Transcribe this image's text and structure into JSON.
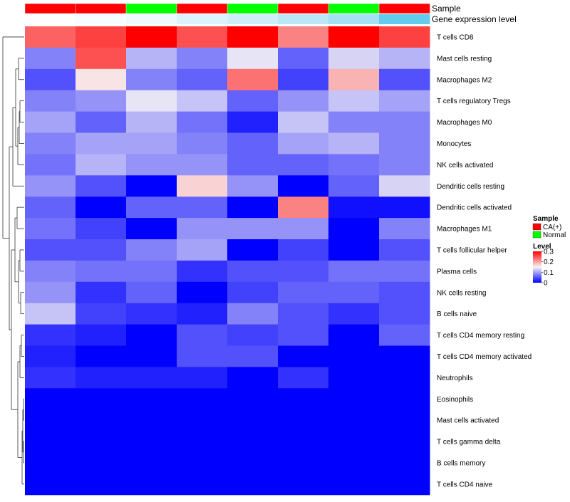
{
  "chart_data": {
    "type": "heatmap",
    "title": "",
    "annotation_labels": [
      "Sample",
      "Gene expression level"
    ],
    "columns": [
      {
        "sample": "CA(+)",
        "expression": 0.02
      },
      {
        "sample": "CA(+)",
        "expression": 0.05
      },
      {
        "sample": "Normal",
        "expression": 0.1
      },
      {
        "sample": "CA(+)",
        "expression": 0.22
      },
      {
        "sample": "Normal",
        "expression": 0.3
      },
      {
        "sample": "CA(+)",
        "expression": 0.42
      },
      {
        "sample": "Normal",
        "expression": 0.55
      },
      {
        "sample": "CA(+)",
        "expression": 0.95
      }
    ],
    "rows": [
      "T cells CD8",
      "Mast cells resting",
      "Macrophages M2",
      "T cells regulatory  Tregs",
      "Macrophages M0",
      "Monocytes",
      "NK cells activated",
      "Dendritic cells resting",
      "Dendritic cells activated",
      "Macrophages M1",
      "T cells follicular helper",
      "Plasma cells",
      "NK cells resting",
      "B cells naive",
      "T cells CD4 memory resting",
      "T cells CD4 memory activated",
      "Neutrophils",
      "Eosinophils",
      "Mast cells activated",
      "T cells gamma delta",
      "B cells memory",
      "T cells CD4 naive"
    ],
    "values": [
      [
        0.24,
        0.26,
        0.3,
        0.25,
        0.3,
        0.22,
        0.3,
        0.26
      ],
      [
        0.08,
        0.25,
        0.11,
        0.08,
        0.14,
        0.06,
        0.13,
        0.11
      ],
      [
        0.05,
        0.16,
        0.08,
        0.06,
        0.23,
        0.04,
        0.19,
        0.05
      ],
      [
        0.08,
        0.09,
        0.14,
        0.12,
        0.06,
        0.09,
        0.12,
        0.1
      ],
      [
        0.1,
        0.06,
        0.11,
        0.07,
        0.02,
        0.12,
        0.08,
        0.08
      ],
      [
        0.08,
        0.1,
        0.1,
        0.08,
        0.06,
        0.1,
        0.11,
        0.08
      ],
      [
        0.07,
        0.11,
        0.09,
        0.09,
        0.06,
        0.06,
        0.07,
        0.08
      ],
      [
        0.09,
        0.05,
        0.0,
        0.17,
        0.09,
        0.0,
        0.06,
        0.13
      ],
      [
        0.06,
        0.0,
        0.06,
        0.06,
        0.0,
        0.22,
        0.01,
        0.01
      ],
      [
        0.07,
        0.04,
        0.0,
        0.09,
        0.09,
        0.09,
        0.0,
        0.08
      ],
      [
        0.05,
        0.05,
        0.08,
        0.1,
        0.0,
        0.04,
        0.0,
        0.05
      ],
      [
        0.08,
        0.07,
        0.07,
        0.03,
        0.05,
        0.05,
        0.07,
        0.07
      ],
      [
        0.09,
        0.03,
        0.06,
        0.0,
        0.04,
        0.06,
        0.06,
        0.05
      ],
      [
        0.12,
        0.04,
        0.03,
        0.02,
        0.08,
        0.05,
        0.03,
        0.05
      ],
      [
        0.03,
        0.02,
        0.0,
        0.05,
        0.04,
        0.05,
        0.0,
        0.06
      ],
      [
        0.02,
        0.0,
        0.0,
        0.05,
        0.05,
        0.0,
        0.0,
        0.0
      ],
      [
        0.03,
        0.02,
        0.02,
        0.02,
        0.0,
        0.03,
        0.0,
        0.0
      ],
      [
        0.0,
        0.0,
        0.0,
        0.0,
        0.0,
        0.0,
        0.0,
        0.0
      ],
      [
        0.0,
        0.0,
        0.0,
        0.0,
        0.0,
        0.0,
        0.0,
        0.0
      ],
      [
        0.0,
        0.0,
        0.0,
        0.0,
        0.0,
        0.0,
        0.0,
        0.0
      ],
      [
        0.0,
        0.0,
        0.0,
        0.0,
        0.0,
        0.0,
        0.0,
        0.0
      ],
      [
        0.0,
        0.0,
        0.0,
        0.0,
        0.0,
        0.0,
        0.0,
        0.0
      ]
    ],
    "color_scale": {
      "min": 0,
      "mid": 0.15,
      "max": 0.3,
      "low_color": "#0000FF",
      "mid_color": "#F8F4F4",
      "high_color": "#FF0000"
    },
    "legend": {
      "sample_title": "Sample",
      "sample_entries": [
        {
          "label": "CA(+)",
          "color": "#FF0000"
        },
        {
          "label": "Normal",
          "color": "#00FF00"
        }
      ],
      "level_title": "Level",
      "level_ticks": [
        "0.3",
        "0.2",
        "0.1",
        "0"
      ],
      "level_tick_values": [
        0.3,
        0.2,
        0.1,
        0
      ]
    },
    "expression_colors": {
      "low": "#FFFFFF",
      "high": "#5BC8EC"
    },
    "row_dendrogram": true,
    "legend_position": "right"
  }
}
